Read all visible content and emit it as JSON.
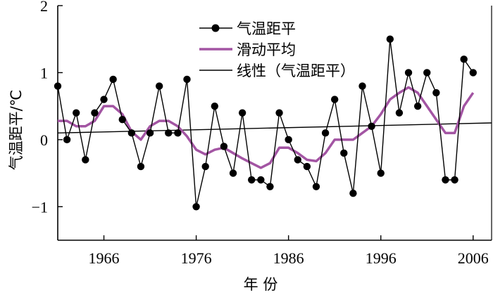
{
  "chart_data": {
    "type": "line",
    "xlabel": "年 份",
    "ylabel": "气温距平/℃",
    "xlim": [
      1961,
      2008
    ],
    "ylim": [
      -1.5,
      2
    ],
    "x_ticks": [
      1966,
      1976,
      1986,
      1996,
      2006
    ],
    "y_ticks": [
      -1,
      0,
      1,
      2
    ],
    "grid": false,
    "legend_position": "top-center",
    "x": [
      1961,
      1962,
      1963,
      1964,
      1965,
      1966,
      1967,
      1968,
      1969,
      1970,
      1971,
      1972,
      1973,
      1974,
      1975,
      1976,
      1977,
      1978,
      1979,
      1980,
      1981,
      1982,
      1983,
      1984,
      1985,
      1986,
      1987,
      1988,
      1989,
      1990,
      1991,
      1992,
      1993,
      1994,
      1995,
      1996,
      1997,
      1998,
      1999,
      2000,
      2001,
      2002,
      2003,
      2004,
      2005,
      2006
    ],
    "series": [
      {
        "name": "气温距平",
        "style": "line-marker",
        "color": "#000000",
        "values": [
          0.8,
          0.0,
          0.4,
          -0.3,
          0.4,
          0.6,
          0.9,
          0.3,
          0.1,
          -0.4,
          0.1,
          0.8,
          0.1,
          0.1,
          0.9,
          -1.0,
          -0.4,
          0.5,
          -0.1,
          -0.5,
          0.4,
          -0.6,
          -0.6,
          -0.7,
          0.4,
          0.0,
          -0.3,
          -0.4,
          -0.7,
          0.1,
          0.6,
          -0.2,
          -0.8,
          0.8,
          0.2,
          -0.5,
          1.5,
          0.4,
          1.0,
          0.5,
          1.0,
          0.7,
          -0.6,
          -0.6,
          1.2,
          1.0
        ]
      },
      {
        "name": "滑动平均",
        "style": "line",
        "color": "#a355a3",
        "x": [
          1961,
          1962,
          1963,
          1964,
          1965,
          1966,
          1967,
          1968,
          1969,
          1970,
          1971,
          1972,
          1973,
          1974,
          1975,
          1976,
          1977,
          1978,
          1979,
          1980,
          1981,
          1982,
          1983,
          1984,
          1985,
          1986,
          1987,
          1988,
          1989,
          1990,
          1991,
          1992,
          1993,
          1994,
          1995,
          1996,
          1997,
          1998,
          1999,
          2000,
          2001,
          2002,
          2003,
          2004,
          2005,
          2006
        ],
        "values": [
          0.28,
          0.28,
          0.2,
          0.2,
          0.28,
          0.5,
          0.5,
          0.38,
          0.12,
          0.0,
          0.2,
          0.28,
          0.28,
          0.2,
          0.05,
          -0.15,
          -0.22,
          -0.15,
          -0.12,
          -0.2,
          -0.28,
          -0.35,
          -0.42,
          -0.35,
          -0.12,
          -0.12,
          -0.2,
          -0.3,
          -0.32,
          -0.2,
          0.0,
          0.0,
          0.0,
          0.1,
          0.2,
          0.38,
          0.6,
          0.7,
          0.78,
          0.7,
          0.5,
          0.3,
          0.1,
          0.1,
          0.5,
          0.7
        ]
      },
      {
        "name": "线性（气温距平）",
        "style": "line",
        "color": "#000000",
        "x": [
          1961,
          2008
        ],
        "values": [
          0.1,
          0.25
        ]
      }
    ]
  }
}
